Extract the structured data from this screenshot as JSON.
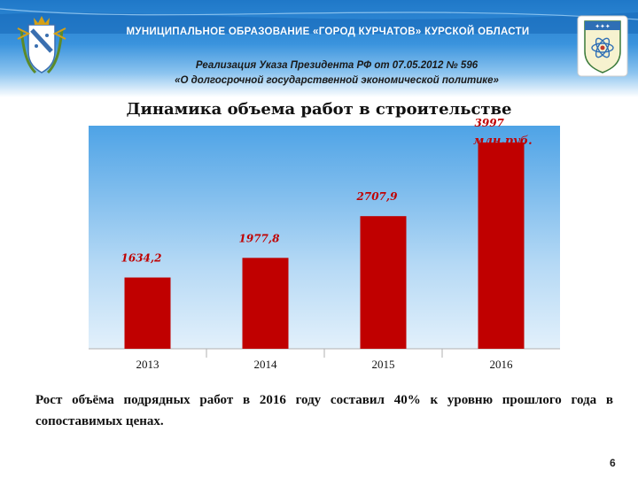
{
  "header": {
    "title": "МУНИЦИПАЛЬНОЕ  ОБРАЗОВАНИЕ  «ГОРОД КУРЧАТОВ»  КУРСКОЙ  ОБЛАСТИ",
    "subtitle_line1": "Реализация Указа Президента РФ от 07.05.2012 № 596",
    "subtitle_line2": "«О долгосрочной государственной экономической политике»",
    "emblem_left": "kursk-oblast-coat-of-arms",
    "emblem_right": "kurchatov-coat-of-arms"
  },
  "chart_data": {
    "type": "bar",
    "title": "Динамика объема работ в строительстве",
    "categories": [
      "2013",
      "2014",
      "2015",
      "2016"
    ],
    "values": [
      1634.2,
      1977.8,
      2707.9,
      3997
    ],
    "value_labels": [
      "1634,2",
      "1977,8",
      "2707,9",
      "3997"
    ],
    "unit_label": "млн.руб.",
    "ylim": [
      0,
      4500
    ],
    "grid": false,
    "bar_color": "#c00000",
    "label_color": "#c00000"
  },
  "footer": {
    "text": "Рост  объёма  подрядных  работ  в  2016  году  составил  40%  к  уровню прошлого года в сопоставимых ценах.",
    "page_number": "6"
  }
}
